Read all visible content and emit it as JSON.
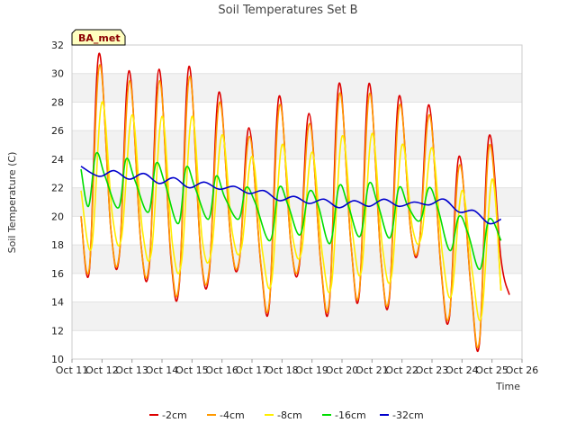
{
  "chart_data": {
    "type": "line",
    "title": "Soil Temperatures Set B",
    "xlabel": "Time",
    "ylabel": "Soil Temperature (C)",
    "station_label": "BA_met",
    "ylim": [
      10,
      32
    ],
    "yticks": [
      10,
      12,
      14,
      16,
      18,
      20,
      22,
      24,
      26,
      28,
      30,
      32
    ],
    "xlim": [
      0,
      15
    ],
    "xticks": [
      {
        "x": 0,
        "label": "Oct 11"
      },
      {
        "x": 1,
        "label": "Oct 12"
      },
      {
        "x": 2,
        "label": "Oct 13"
      },
      {
        "x": 3,
        "label": "Oct 14"
      },
      {
        "x": 4,
        "label": "Oct 15"
      },
      {
        "x": 5,
        "label": "Oct 16"
      },
      {
        "x": 6,
        "label": "Oct 17"
      },
      {
        "x": 7,
        "label": "Oct 18"
      },
      {
        "x": 8,
        "label": "Oct 19"
      },
      {
        "x": 9,
        "label": "Oct 20"
      },
      {
        "x": 10,
        "label": "Oct 21"
      },
      {
        "x": 11,
        "label": "Oct 22"
      },
      {
        "x": 12,
        "label": "Oct 23"
      },
      {
        "x": 13,
        "label": "Oct 24"
      },
      {
        "x": 14,
        "label": "Oct 25"
      },
      {
        "x": 15,
        "label": "Oct 26"
      }
    ],
    "grid": "horizontal bands",
    "legend_position": "bottom",
    "series": [
      {
        "name": "-2cm",
        "color": "#dd0000",
        "x": [
          0.3,
          0.58,
          0.9,
          1.3,
          1.58,
          1.9,
          2.3,
          2.58,
          2.9,
          3.3,
          3.58,
          3.9,
          4.3,
          4.58,
          4.9,
          5.3,
          5.58,
          5.9,
          6.3,
          6.58,
          6.9,
          7.3,
          7.58,
          7.9,
          8.3,
          8.58,
          8.9,
          9.3,
          9.58,
          9.9,
          10.3,
          10.58,
          10.9,
          11.3,
          11.58,
          11.9,
          12.3,
          12.58,
          12.9,
          13.3,
          13.58,
          13.9,
          14.3,
          14.58,
          14.9
        ],
        "values": [
          20.0,
          16.2,
          31.4,
          19.0,
          17.3,
          30.2,
          18.0,
          16.6,
          30.3,
          17.0,
          15.3,
          30.5,
          17.2,
          16.2,
          28.7,
          18.2,
          16.9,
          26.2,
          16.5,
          13.8,
          28.4,
          18.0,
          16.6,
          27.2,
          16.5,
          13.9,
          29.3,
          18.0,
          14.6,
          29.3,
          17.0,
          14.3,
          28.4,
          18.8,
          18.1,
          27.8,
          16.3,
          12.9,
          24.2,
          15.0,
          11.1,
          25.6,
          17.0,
          14.5,
          null
        ]
      },
      {
        "name": "-4cm",
        "color": "#ff9900",
        "x": [
          0.3,
          0.58,
          0.92,
          1.3,
          1.58,
          1.92,
          2.3,
          2.58,
          2.92,
          3.3,
          3.58,
          3.92,
          4.3,
          4.58,
          4.92,
          5.3,
          5.58,
          5.92,
          6.3,
          6.58,
          6.92,
          7.3,
          7.58,
          7.92,
          8.3,
          8.58,
          8.92,
          9.3,
          9.58,
          9.92,
          10.3,
          10.58,
          10.92,
          11.3,
          11.58,
          11.92,
          12.3,
          12.58,
          12.92,
          13.3,
          13.58,
          13.92,
          14.3
        ],
        "values": [
          20.0,
          16.4,
          30.6,
          19.0,
          17.4,
          29.5,
          18.0,
          16.8,
          29.5,
          17.2,
          15.5,
          29.8,
          17.3,
          16.4,
          28.0,
          18.2,
          17.0,
          25.6,
          16.6,
          14.0,
          27.8,
          18.0,
          16.8,
          26.5,
          16.6,
          14.1,
          28.6,
          18.0,
          14.8,
          28.6,
          17.0,
          14.5,
          27.8,
          18.8,
          18.2,
          27.1,
          16.4,
          13.1,
          23.6,
          15.1,
          11.3,
          25.0,
          14.8
        ]
      },
      {
        "name": "-8cm",
        "color": "#ffee00",
        "x": [
          0.3,
          0.65,
          1.0,
          1.35,
          1.65,
          2.0,
          2.35,
          2.65,
          3.0,
          3.35,
          3.65,
          4.0,
          4.35,
          4.65,
          5.0,
          5.35,
          5.65,
          6.0,
          6.35,
          6.65,
          7.0,
          7.35,
          7.65,
          8.0,
          8.35,
          8.65,
          9.0,
          9.35,
          9.65,
          10.0,
          10.35,
          10.65,
          11.0,
          11.35,
          11.65,
          12.0,
          12.35,
          12.65,
          13.0,
          13.35,
          13.65,
          14.0,
          14.3
        ],
        "values": [
          21.8,
          17.8,
          28.0,
          20.0,
          18.5,
          27.1,
          19.0,
          17.5,
          27.0,
          18.0,
          16.8,
          27.0,
          18.2,
          17.6,
          25.7,
          18.8,
          17.8,
          24.2,
          17.5,
          15.4,
          25.0,
          18.6,
          17.5,
          24.5,
          17.3,
          15.2,
          25.6,
          18.8,
          16.2,
          25.8,
          17.8,
          15.8,
          25.0,
          19.2,
          18.6,
          24.8,
          17.3,
          14.5,
          21.8,
          16.0,
          13.0,
          22.6,
          14.8
        ]
      },
      {
        "name": "-16cm",
        "color": "#00dd00",
        "x": [
          0.3,
          0.55,
          0.8,
          1.1,
          1.55,
          1.8,
          2.1,
          2.55,
          2.8,
          3.1,
          3.55,
          3.8,
          4.1,
          4.55,
          4.8,
          5.1,
          5.55,
          5.8,
          6.1,
          6.6,
          6.9,
          7.2,
          7.6,
          7.9,
          8.2,
          8.6,
          8.9,
          9.2,
          9.6,
          9.9,
          10.2,
          10.6,
          10.9,
          11.2,
          11.6,
          11.9,
          12.2,
          12.6,
          12.9,
          13.2,
          13.6,
          13.9,
          14.3
        ],
        "values": [
          23.3,
          20.7,
          24.4,
          22.8,
          20.6,
          24.0,
          22.5,
          20.3,
          23.7,
          22.3,
          19.5,
          23.4,
          22.0,
          19.8,
          22.8,
          21.3,
          19.8,
          22.0,
          21.0,
          18.3,
          22.0,
          20.8,
          18.7,
          21.7,
          20.8,
          18.1,
          22.1,
          20.8,
          18.6,
          22.3,
          20.8,
          18.5,
          22.0,
          20.7,
          19.7,
          22.0,
          20.5,
          17.6,
          20.0,
          18.8,
          16.3,
          19.8,
          18.3
        ]
      },
      {
        "name": "-32cm",
        "color": "#0000cc",
        "x": [
          0.3,
          0.9,
          1.4,
          1.9,
          2.4,
          2.9,
          3.4,
          3.9,
          4.4,
          4.9,
          5.4,
          5.9,
          6.4,
          6.9,
          7.4,
          7.9,
          8.4,
          8.9,
          9.4,
          9.9,
          10.4,
          10.9,
          11.4,
          11.9,
          12.4,
          12.9,
          13.4,
          13.9,
          14.3
        ],
        "values": [
          23.5,
          22.8,
          23.2,
          22.6,
          23.0,
          22.3,
          22.7,
          22.0,
          22.4,
          21.9,
          22.1,
          21.6,
          21.8,
          21.1,
          21.4,
          20.9,
          21.2,
          20.6,
          21.1,
          20.7,
          21.2,
          20.7,
          21.0,
          20.8,
          21.2,
          20.3,
          20.4,
          19.5,
          19.8
        ]
      }
    ]
  }
}
